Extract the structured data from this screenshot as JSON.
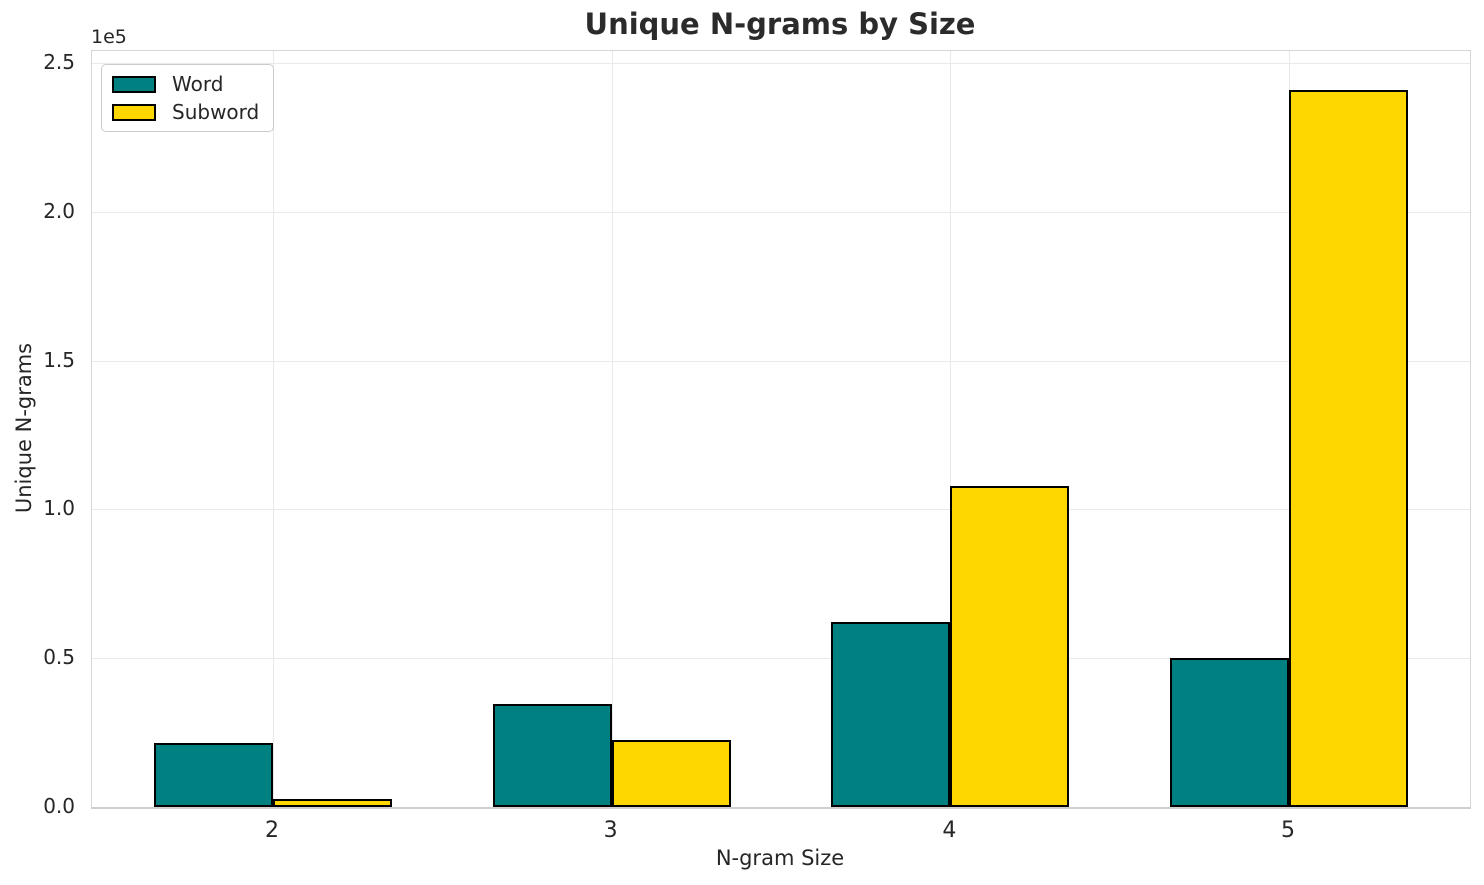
{
  "chart_data": {
    "type": "bar",
    "title": "Unique N-grams by Size",
    "xlabel": "N-gram Size",
    "ylabel": "Unique N-grams",
    "offset_label": "1e5",
    "categories": [
      "2",
      "3",
      "4",
      "5"
    ],
    "series": [
      {
        "name": "Word",
        "color": "#008080",
        "values": [
          21500,
          34500,
          62000,
          50000
        ]
      },
      {
        "name": "Subword",
        "color": "#FFD700",
        "values": [
          2800,
          22500,
          108000,
          241000
        ]
      }
    ],
    "bar_edge_color": "#000000",
    "ylim": [
      0,
      254000
    ],
    "yticks": {
      "values": [
        0,
        50000,
        100000,
        150000,
        200000,
        250000
      ],
      "labels": [
        "0.0",
        "0.5",
        "1.0",
        "1.5",
        "2.0",
        "2.5"
      ]
    },
    "grid": true,
    "legend_position": "upper-left"
  }
}
